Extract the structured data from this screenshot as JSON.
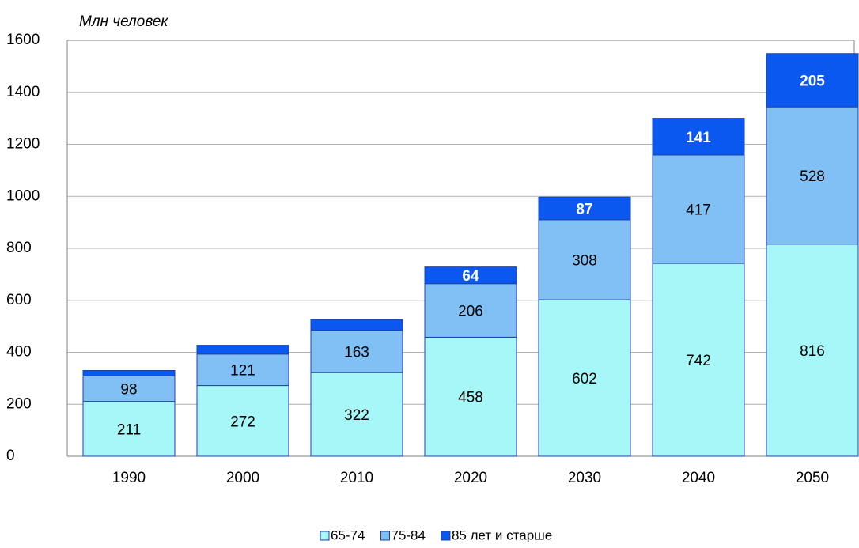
{
  "chart_data": {
    "type": "stacked_bar",
    "y_axis_label": "Млн человек",
    "categories": [
      "1990",
      "2000",
      "2010",
      "2020",
      "2030",
      "2040",
      "2050"
    ],
    "series": [
      {
        "name": "65-74",
        "color": "#a6f7f7",
        "values": [
          211,
          272,
          322,
          458,
          602,
          742,
          816
        ]
      },
      {
        "name": "75-84",
        "color": "#80c0f4",
        "values": [
          98,
          121,
          163,
          206,
          308,
          417,
          528
        ]
      },
      {
        "name": "85 лет и старше",
        "color": "#0a58f0",
        "values": [
          21,
          34,
          41,
          64,
          87,
          141,
          205
        ]
      }
    ],
    "ylim": [
      0,
      1600
    ],
    "yticks": [
      0,
      200,
      400,
      600,
      800,
      1000,
      1200,
      1400,
      1600
    ],
    "grid": true,
    "legend": "bottom"
  }
}
